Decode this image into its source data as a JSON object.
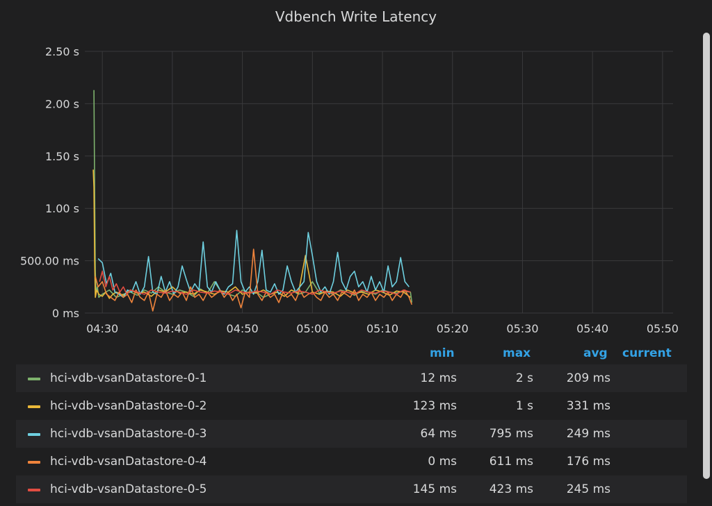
{
  "panel": {
    "title": "Vdbench Write Latency"
  },
  "legend": {
    "columns": {
      "min": "min",
      "max": "max",
      "avg": "avg",
      "current": "current"
    },
    "rows": [
      {
        "name": "hci-vdb-vsanDatastore-0-1",
        "color": "#7eb26d",
        "min": "12 ms",
        "max": "2 s",
        "avg": "209 ms",
        "current": ""
      },
      {
        "name": "hci-vdb-vsanDatastore-0-2",
        "color": "#eab839",
        "min": "123 ms",
        "max": "1 s",
        "avg": "331 ms",
        "current": ""
      },
      {
        "name": "hci-vdb-vsanDatastore-0-3",
        "color": "#6ed0e0",
        "min": "64 ms",
        "max": "795 ms",
        "avg": "249 ms",
        "current": ""
      },
      {
        "name": "hci-vdb-vsanDatastore-0-4",
        "color": "#ef843c",
        "min": "0 ms",
        "max": "611 ms",
        "avg": "176 ms",
        "current": ""
      },
      {
        "name": "hci-vdb-vsanDatastore-0-5",
        "color": "#e24d42",
        "min": "145 ms",
        "max": "423 ms",
        "avg": "245 ms",
        "current": ""
      }
    ]
  },
  "chart_data": {
    "type": "line",
    "title": "Vdbench Write Latency",
    "xlabel": "",
    "ylabel": "",
    "x_ticks": [
      "04:30",
      "04:40",
      "04:50",
      "05:00",
      "05:10",
      "05:20",
      "05:30",
      "05:40",
      "05:50"
    ],
    "y_ticks": [
      "0 ms",
      "500.00 ms",
      "1.00 s",
      "1.50 s",
      "2.00 s",
      "2.50 s"
    ],
    "ylim_seconds": [
      0,
      2.5
    ],
    "xlim_minutes_after_0430": [
      -2.5,
      81.5
    ],
    "grid": true,
    "legend_placement": "bottom table",
    "series": [
      {
        "name": "hci-vdb-vsanDatastore-0-1",
        "color": "#7eb26d",
        "x": [
          -1.2,
          -1.1,
          -1.0,
          -0.9,
          -0.7,
          -0.5,
          0,
          0.5,
          1,
          2,
          3,
          4,
          5,
          6,
          7,
          8,
          9,
          10,
          11,
          12,
          13,
          14,
          15,
          16,
          17,
          18,
          19,
          20,
          21,
          22,
          23,
          24,
          25,
          26,
          27,
          28,
          29,
          30,
          31,
          32,
          33,
          34,
          35,
          36,
          37,
          38,
          39,
          40,
          41,
          42,
          43,
          44,
          44.2
        ],
        "y": [
          2.13,
          1.2,
          0.4,
          0.2,
          0.25,
          0.15,
          0.18,
          0.2,
          0.22,
          0.15,
          0.18,
          0.2,
          0.17,
          0.22,
          0.19,
          0.25,
          0.2,
          0.18,
          0.22,
          0.2,
          0.16,
          0.23,
          0.19,
          0.3,
          0.2,
          0.18,
          0.16,
          0.22,
          0.19,
          0.2,
          0.15,
          0.18,
          0.2,
          0.16,
          0.22,
          0.18,
          0.2,
          0.3,
          0.19,
          0.2,
          0.18,
          0.22,
          0.2,
          0.17,
          0.21,
          0.2,
          0.18,
          0.22,
          0.2,
          0.19,
          0.21,
          0.2,
          0.1
        ]
      },
      {
        "name": "hci-vdb-vsanDatastore-0-2",
        "color": "#eab839",
        "x": [
          -1.3,
          -1.2,
          -1.1,
          -1.0,
          -0.8,
          -0.5,
          0,
          0.5,
          1,
          1.5,
          2,
          3,
          4,
          5,
          6,
          7,
          8,
          9,
          10,
          11,
          12,
          13,
          14,
          15,
          16,
          17,
          18,
          19,
          20,
          21,
          22,
          23,
          24,
          25,
          26,
          27,
          28,
          29,
          30,
          31,
          32,
          33,
          34,
          35,
          36,
          37,
          38,
          39,
          40,
          41,
          42,
          43,
          44
        ],
        "y": [
          1.37,
          1.2,
          0.5,
          0.15,
          0.22,
          0.18,
          0.16,
          0.2,
          0.14,
          0.18,
          0.2,
          0.17,
          0.22,
          0.19,
          0.2,
          0.16,
          0.22,
          0.2,
          0.25,
          0.19,
          0.2,
          0.18,
          0.22,
          0.2,
          0.18,
          0.21,
          0.2,
          0.25,
          0.18,
          0.2,
          0.19,
          0.22,
          0.18,
          0.2,
          0.16,
          0.22,
          0.19,
          0.55,
          0.2,
          0.18,
          0.21,
          0.2,
          0.16,
          0.22,
          0.19,
          0.2,
          0.18,
          0.22,
          0.2,
          0.17,
          0.21,
          0.2,
          0.15
        ]
      },
      {
        "name": "hci-vdb-vsanDatastore-0-3",
        "color": "#6ed0e0",
        "x": [
          -0.6,
          0,
          0.6,
          1.2,
          1.8,
          2.4,
          3,
          3.6,
          4.2,
          4.8,
          5.4,
          6,
          6.6,
          7.2,
          7.8,
          8.4,
          9,
          9.6,
          10.2,
          10.8,
          11.4,
          12,
          12.6,
          13.2,
          13.8,
          14.4,
          15,
          15.6,
          16.2,
          16.8,
          17.4,
          18,
          18.6,
          19.2,
          19.8,
          20.4,
          21,
          21.6,
          22.2,
          22.8,
          23.4,
          24,
          24.6,
          25.2,
          25.8,
          26.4,
          27,
          27.6,
          28.2,
          28.8,
          29.4,
          30,
          30.6,
          31.2,
          31.8,
          32.4,
          33,
          33.6,
          34.2,
          34.8,
          35.4,
          36,
          36.6,
          37.2,
          37.8,
          38.4,
          39,
          39.6,
          40.2,
          40.8,
          41.4,
          42,
          42.6,
          43.2,
          43.8
        ],
        "y": [
          0.52,
          0.48,
          0.28,
          0.38,
          0.2,
          0.18,
          0.15,
          0.22,
          0.2,
          0.3,
          0.18,
          0.25,
          0.54,
          0.2,
          0.18,
          0.35,
          0.2,
          0.3,
          0.18,
          0.25,
          0.45,
          0.32,
          0.2,
          0.28,
          0.22,
          0.68,
          0.25,
          0.2,
          0.3,
          0.22,
          0.18,
          0.25,
          0.28,
          0.79,
          0.3,
          0.2,
          0.25,
          0.18,
          0.3,
          0.6,
          0.22,
          0.2,
          0.28,
          0.18,
          0.22,
          0.45,
          0.3,
          0.2,
          0.25,
          0.3,
          0.77,
          0.55,
          0.3,
          0.2,
          0.25,
          0.18,
          0.3,
          0.58,
          0.3,
          0.22,
          0.35,
          0.4,
          0.25,
          0.3,
          0.2,
          0.35,
          0.22,
          0.3,
          0.2,
          0.45,
          0.25,
          0.3,
          0.53,
          0.3,
          0.25
        ]
      },
      {
        "name": "hci-vdb-vsanDatastore-0-4",
        "color": "#ef843c",
        "x": [
          -1.0,
          -0.6,
          0,
          0.6,
          1.2,
          1.8,
          2.4,
          3,
          3.6,
          4.2,
          4.8,
          5.4,
          6,
          6.6,
          7.2,
          7.8,
          8.4,
          9,
          9.6,
          10.2,
          10.8,
          11.4,
          12,
          12.6,
          13.2,
          13.8,
          14.4,
          15,
          15.6,
          16.2,
          16.8,
          17.4,
          18,
          18.6,
          19.2,
          19.8,
          20.4,
          21,
          21.6,
          22.2,
          22.8,
          23.4,
          24,
          24.6,
          25.2,
          25.8,
          26.4,
          27,
          27.6,
          28.2,
          28.8,
          29.4,
          30,
          30.6,
          31.2,
          31.8,
          32.4,
          33,
          33.6,
          34.2,
          34.8,
          35.4,
          36,
          36.6,
          37.2,
          37.8,
          38.4,
          39,
          39.6,
          40.2,
          40.8,
          41.4,
          42,
          42.6,
          43.2,
          43.8,
          44.2
        ],
        "y": [
          0.35,
          0.25,
          0.3,
          0.18,
          0.15,
          0.12,
          0.2,
          0.15,
          0.18,
          0.1,
          0.22,
          0.15,
          0.12,
          0.2,
          0.02,
          0.18,
          0.15,
          0.22,
          0.12,
          0.18,
          0.15,
          0.2,
          0.12,
          0.25,
          0.15,
          0.18,
          0.12,
          0.2,
          0.15,
          0.18,
          0.22,
          0.15,
          0.2,
          0.12,
          0.18,
          0.05,
          0.2,
          0.15,
          0.61,
          0.18,
          0.12,
          0.2,
          0.15,
          0.18,
          0.1,
          0.2,
          0.15,
          0.18,
          0.12,
          0.22,
          0.15,
          0.18,
          0.2,
          0.15,
          0.12,
          0.2,
          0.15,
          0.18,
          0.12,
          0.2,
          0.18,
          0.15,
          0.22,
          0.12,
          0.18,
          0.15,
          0.2,
          0.12,
          0.18,
          0.15,
          0.2,
          0.12,
          0.18,
          0.15,
          0.22,
          0.15,
          0.08
        ]
      },
      {
        "name": "hci-vdb-vsanDatastore-0-5",
        "color": "#e24d42",
        "x": [
          -0.4,
          0,
          0.5,
          1,
          1.5,
          2,
          2.5,
          3,
          3.5,
          4,
          5,
          6,
          7,
          8,
          9,
          10,
          11,
          12,
          13,
          14,
          15,
          16,
          17,
          18,
          19,
          20,
          21,
          22,
          23,
          24,
          25,
          26,
          27,
          28,
          29,
          30,
          31,
          32,
          33,
          34,
          35,
          36,
          37,
          38,
          39,
          40,
          41,
          42,
          43,
          44
        ],
        "y": [
          0.3,
          0.4,
          0.25,
          0.35,
          0.22,
          0.28,
          0.2,
          0.25,
          0.18,
          0.22,
          0.2,
          0.18,
          0.22,
          0.2,
          0.19,
          0.21,
          0.2,
          0.18,
          0.22,
          0.2,
          0.19,
          0.21,
          0.2,
          0.18,
          0.22,
          0.2,
          0.19,
          0.21,
          0.2,
          0.18,
          0.22,
          0.2,
          0.19,
          0.21,
          0.2,
          0.18,
          0.22,
          0.2,
          0.19,
          0.21,
          0.2,
          0.18,
          0.22,
          0.2,
          0.19,
          0.21,
          0.2,
          0.18,
          0.22,
          0.2
        ]
      }
    ]
  }
}
